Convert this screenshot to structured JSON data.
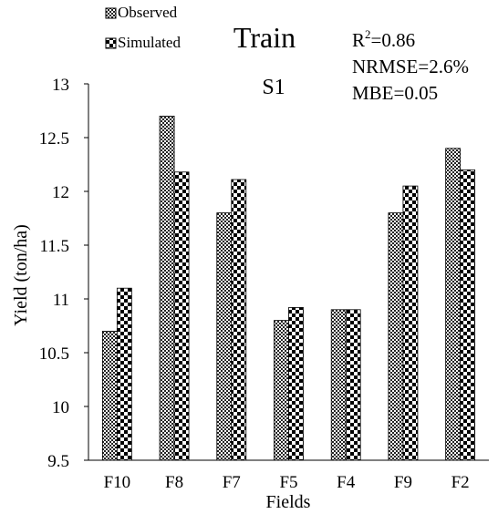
{
  "chart_data": {
    "type": "bar",
    "title": "Train",
    "subtitle": "S1",
    "xlabel": "Fields",
    "ylabel": "Yield (ton/ha)",
    "categories": [
      "F10",
      "F8",
      "F7",
      "F5",
      "F4",
      "F9",
      "F2"
    ],
    "series": [
      {
        "name": "Observed",
        "values": [
          10.7,
          12.7,
          11.8,
          10.8,
          10.9,
          11.8,
          12.4
        ]
      },
      {
        "name": "Simulated",
        "values": [
          11.1,
          12.18,
          12.11,
          10.92,
          10.9,
          12.05,
          12.2
        ]
      }
    ],
    "ylim": [
      9.5,
      13
    ],
    "yticks": [
      9.5,
      10,
      10.5,
      11,
      11.5,
      12,
      12.5,
      13
    ],
    "ytick_labels": [
      "9.5",
      "10",
      "10.5",
      "11",
      "11.5",
      "12",
      "12.5",
      "13"
    ],
    "grid": false,
    "legend_position": "top-left",
    "stats": {
      "r2_label": "R",
      "r2_sup": "2",
      "r2_value": "=0.86",
      "nrmse": "NRMSE=2.6%",
      "mbe": "MBE=0.05"
    }
  }
}
